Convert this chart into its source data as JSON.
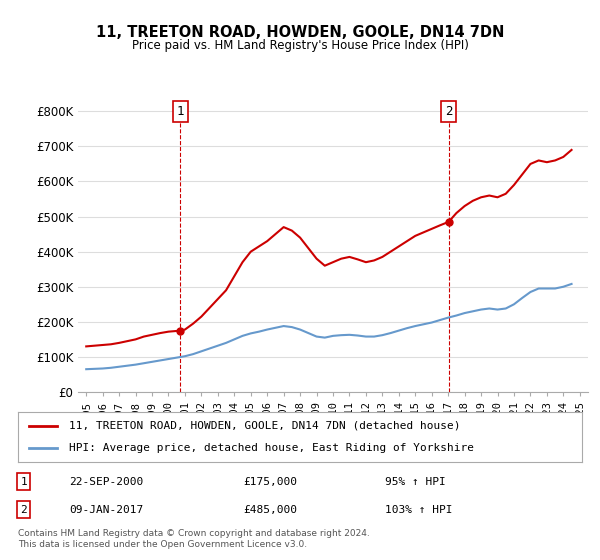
{
  "title": "11, TREETON ROAD, HOWDEN, GOOLE, DN14 7DN",
  "subtitle": "Price paid vs. HM Land Registry's House Price Index (HPI)",
  "red_label": "11, TREETON ROAD, HOWDEN, GOOLE, DN14 7DN (detached house)",
  "blue_label": "HPI: Average price, detached house, East Riding of Yorkshire",
  "annotation1_label": "1",
  "annotation1_date": "22-SEP-2000",
  "annotation1_price": "£175,000",
  "annotation1_hpi": "95% ↑ HPI",
  "annotation2_label": "2",
  "annotation2_date": "09-JAN-2017",
  "annotation2_price": "£485,000",
  "annotation2_hpi": "103% ↑ HPI",
  "footnote": "Contains HM Land Registry data © Crown copyright and database right 2024.\nThis data is licensed under the Open Government Licence v3.0.",
  "ylim": [
    0,
    830000
  ],
  "yticks": [
    0,
    100000,
    200000,
    300000,
    400000,
    500000,
    600000,
    700000,
    800000
  ],
  "ytick_labels": [
    "£0",
    "£100K",
    "£200K",
    "£300K",
    "£400K",
    "£500K",
    "£600K",
    "£700K",
    "£800K"
  ],
  "xtick_years": [
    1995,
    1996,
    1997,
    1998,
    1999,
    2000,
    2001,
    2002,
    2003,
    2004,
    2005,
    2006,
    2007,
    2008,
    2009,
    2010,
    2011,
    2012,
    2013,
    2014,
    2015,
    2016,
    2017,
    2018,
    2019,
    2020,
    2021,
    2022,
    2023,
    2024,
    2025
  ],
  "red_color": "#cc0000",
  "blue_color": "#6699cc",
  "dashed_color": "#cc0000",
  "background_color": "#ffffff",
  "grid_color": "#dddddd",
  "sale1_x": 2000.72,
  "sale1_y": 175000,
  "sale2_x": 2017.03,
  "sale2_y": 485000,
  "hpi_base_year": 1995,
  "hpi_base_value": 65000,
  "red_line_data_x": [
    1995.0,
    1995.5,
    1996.0,
    1996.5,
    1997.0,
    1997.5,
    1998.0,
    1998.5,
    1999.0,
    1999.5,
    2000.0,
    2000.5,
    2000.72,
    2001.0,
    2001.5,
    2002.0,
    2002.5,
    2003.0,
    2003.5,
    2004.0,
    2004.5,
    2005.0,
    2005.5,
    2006.0,
    2006.5,
    2007.0,
    2007.5,
    2008.0,
    2008.5,
    2009.0,
    2009.5,
    2010.0,
    2010.5,
    2011.0,
    2011.5,
    2012.0,
    2012.5,
    2013.0,
    2013.5,
    2014.0,
    2014.5,
    2015.0,
    2015.5,
    2016.0,
    2016.5,
    2017.03,
    2017.5,
    2018.0,
    2018.5,
    2019.0,
    2019.5,
    2020.0,
    2020.5,
    2021.0,
    2021.5,
    2022.0,
    2022.5,
    2023.0,
    2023.5,
    2024.0,
    2024.5
  ],
  "red_line_data_y": [
    130000,
    132000,
    134000,
    136000,
    140000,
    145000,
    150000,
    158000,
    163000,
    168000,
    172000,
    174000,
    175000,
    178000,
    195000,
    215000,
    240000,
    265000,
    290000,
    330000,
    370000,
    400000,
    415000,
    430000,
    450000,
    470000,
    460000,
    440000,
    410000,
    380000,
    360000,
    370000,
    380000,
    385000,
    378000,
    370000,
    375000,
    385000,
    400000,
    415000,
    430000,
    445000,
    455000,
    465000,
    475000,
    485000,
    510000,
    530000,
    545000,
    555000,
    560000,
    555000,
    565000,
    590000,
    620000,
    650000,
    660000,
    655000,
    660000,
    670000,
    690000
  ],
  "blue_line_data_x": [
    1995.0,
    1995.5,
    1996.0,
    1996.5,
    1997.0,
    1997.5,
    1998.0,
    1998.5,
    1999.0,
    1999.5,
    2000.0,
    2000.5,
    2001.0,
    2001.5,
    2002.0,
    2002.5,
    2003.0,
    2003.5,
    2004.0,
    2004.5,
    2005.0,
    2005.5,
    2006.0,
    2006.5,
    2007.0,
    2007.5,
    2008.0,
    2008.5,
    2009.0,
    2009.5,
    2010.0,
    2010.5,
    2011.0,
    2011.5,
    2012.0,
    2012.5,
    2013.0,
    2013.5,
    2014.0,
    2014.5,
    2015.0,
    2015.5,
    2016.0,
    2016.5,
    2017.0,
    2017.5,
    2018.0,
    2018.5,
    2019.0,
    2019.5,
    2020.0,
    2020.5,
    2021.0,
    2021.5,
    2022.0,
    2022.5,
    2023.0,
    2023.5,
    2024.0,
    2024.5
  ],
  "blue_line_data_y": [
    65000,
    66000,
    67000,
    69000,
    72000,
    75000,
    78000,
    82000,
    86000,
    90000,
    94000,
    98000,
    102000,
    108000,
    116000,
    124000,
    132000,
    140000,
    150000,
    160000,
    167000,
    172000,
    178000,
    183000,
    188000,
    185000,
    178000,
    168000,
    158000,
    155000,
    160000,
    162000,
    163000,
    161000,
    158000,
    158000,
    162000,
    168000,
    175000,
    182000,
    188000,
    193000,
    198000,
    205000,
    212000,
    218000,
    225000,
    230000,
    235000,
    238000,
    235000,
    238000,
    250000,
    268000,
    285000,
    295000,
    295000,
    295000,
    300000,
    308000
  ]
}
